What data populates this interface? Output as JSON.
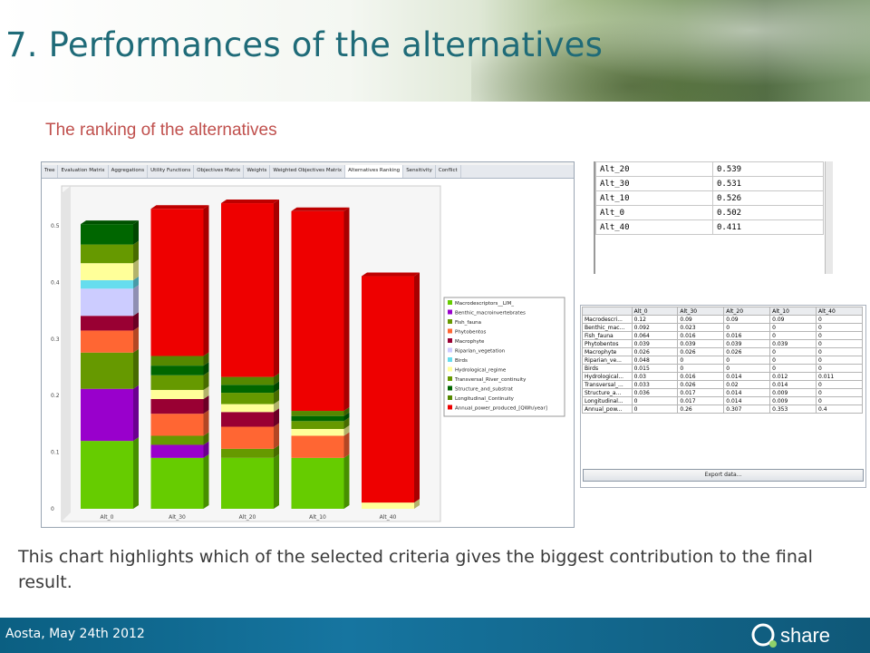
{
  "slide": {
    "title": "7. Performances of the alternatives",
    "subtitle": "The ranking of the alternatives",
    "body": "This chart highlights which of the selected criteria gives the biggest contribution to the final result.",
    "footer": "Aosta, May 24th 2012",
    "logo_text": "share"
  },
  "app": {
    "tabs": [
      "Tree",
      "Evaluation Matrix",
      "Aggregations",
      "Utility Functions",
      "Objectives Matrix",
      "Weights",
      "Weighted Objectives Matrix",
      "Alternatives Ranking",
      "Sensitivity",
      "Conflict"
    ],
    "active_tab": "Alternatives Ranking"
  },
  "ranking_table": [
    {
      "name": "Alt_20",
      "value": "0.539"
    },
    {
      "name": "Alt_30",
      "value": "0.531"
    },
    {
      "name": "Alt_10",
      "value": "0.526"
    },
    {
      "name": "Alt_0",
      "value": "0.502"
    },
    {
      "name": "Alt_40",
      "value": "0.411"
    }
  ],
  "matrix_table": {
    "headers": [
      "",
      "Alt_0",
      "Alt_30",
      "Alt_20",
      "Alt_10",
      "Alt_40"
    ],
    "rows": [
      [
        "Macrodescri...",
        "0.12",
        "0.09",
        "0.09",
        "0.09",
        "0"
      ],
      [
        "Benthic_mac...",
        "0.092",
        "0.023",
        "0",
        "0",
        "0"
      ],
      [
        "Fish_fauna",
        "0.064",
        "0.016",
        "0.016",
        "0",
        "0"
      ],
      [
        "Phytobentos",
        "0.039",
        "0.039",
        "0.039",
        "0.039",
        "0"
      ],
      [
        "Macrophyte",
        "0.026",
        "0.026",
        "0.026",
        "0",
        "0"
      ],
      [
        "Riparian_ve...",
        "0.048",
        "0",
        "0",
        "0",
        "0"
      ],
      [
        "Birds",
        "0.015",
        "0",
        "0",
        "0",
        "0"
      ],
      [
        "Hydrological...",
        "0.03",
        "0.016",
        "0.014",
        "0.012",
        "0.011"
      ],
      [
        "Transversal_...",
        "0.033",
        "0.026",
        "0.02",
        "0.014",
        "0"
      ],
      [
        "Structure_a...",
        "0.036",
        "0.017",
        "0.014",
        "0.009",
        "0"
      ],
      [
        "Longitudinal...",
        "0",
        "0.017",
        "0.014",
        "0.009",
        "0"
      ],
      [
        "Annual_pow...",
        "0",
        "0.26",
        "0.307",
        "0.353",
        "0.4"
      ]
    ],
    "export_label": "Export data..."
  },
  "chart_data": {
    "type": "bar",
    "stacked": true,
    "categories": [
      "Alt_0",
      "Alt_30",
      "Alt_20",
      "Alt_10",
      "Alt_40"
    ],
    "ylim": [
      0,
      0.5
    ],
    "yticks": [
      "0",
      "0.1",
      "0.2",
      "0.3",
      "0.4",
      "0.5"
    ],
    "series": [
      {
        "name": "Macrodescriptors__LIM_",
        "color": "#66cc00",
        "values": [
          0.12,
          0.09,
          0.09,
          0.09,
          0
        ]
      },
      {
        "name": "Benthic_macroinvertebrates",
        "color": "#9900cc",
        "values": [
          0.092,
          0.023,
          0,
          0,
          0
        ]
      },
      {
        "name": "Fish_fauna",
        "color": "#669900",
        "values": [
          0.064,
          0.016,
          0.016,
          0,
          0
        ]
      },
      {
        "name": "Phytobentos",
        "color": "#ff6633",
        "values": [
          0.039,
          0.039,
          0.039,
          0.039,
          0
        ]
      },
      {
        "name": "Macrophyte",
        "color": "#990033",
        "values": [
          0.026,
          0.026,
          0.026,
          0,
          0
        ]
      },
      {
        "name": "Riparian_vegetation",
        "color": "#ccccff",
        "values": [
          0.048,
          0,
          0,
          0,
          0
        ]
      },
      {
        "name": "Birds",
        "color": "#66ddee",
        "values": [
          0.015,
          0,
          0,
          0,
          0
        ]
      },
      {
        "name": "Hydrological_regime",
        "color": "#ffff99",
        "values": [
          0.03,
          0.016,
          0.014,
          0.012,
          0.011
        ]
      },
      {
        "name": "Transversal_River_continuity",
        "color": "#669900",
        "values": [
          0.033,
          0.026,
          0.02,
          0.014,
          0
        ]
      },
      {
        "name": "Structure_and_substrat",
        "color": "#006600",
        "values": [
          0.036,
          0.017,
          0.014,
          0.009,
          0
        ]
      },
      {
        "name": "Longitudinal_Continuity",
        "color": "#558800",
        "values": [
          0,
          0.017,
          0.014,
          0.009,
          0
        ]
      },
      {
        "name": "Annual_power_produced_[QWh/year]",
        "color": "#ee0000",
        "values": [
          0,
          0.26,
          0.307,
          0.353,
          0.4
        ]
      }
    ]
  }
}
